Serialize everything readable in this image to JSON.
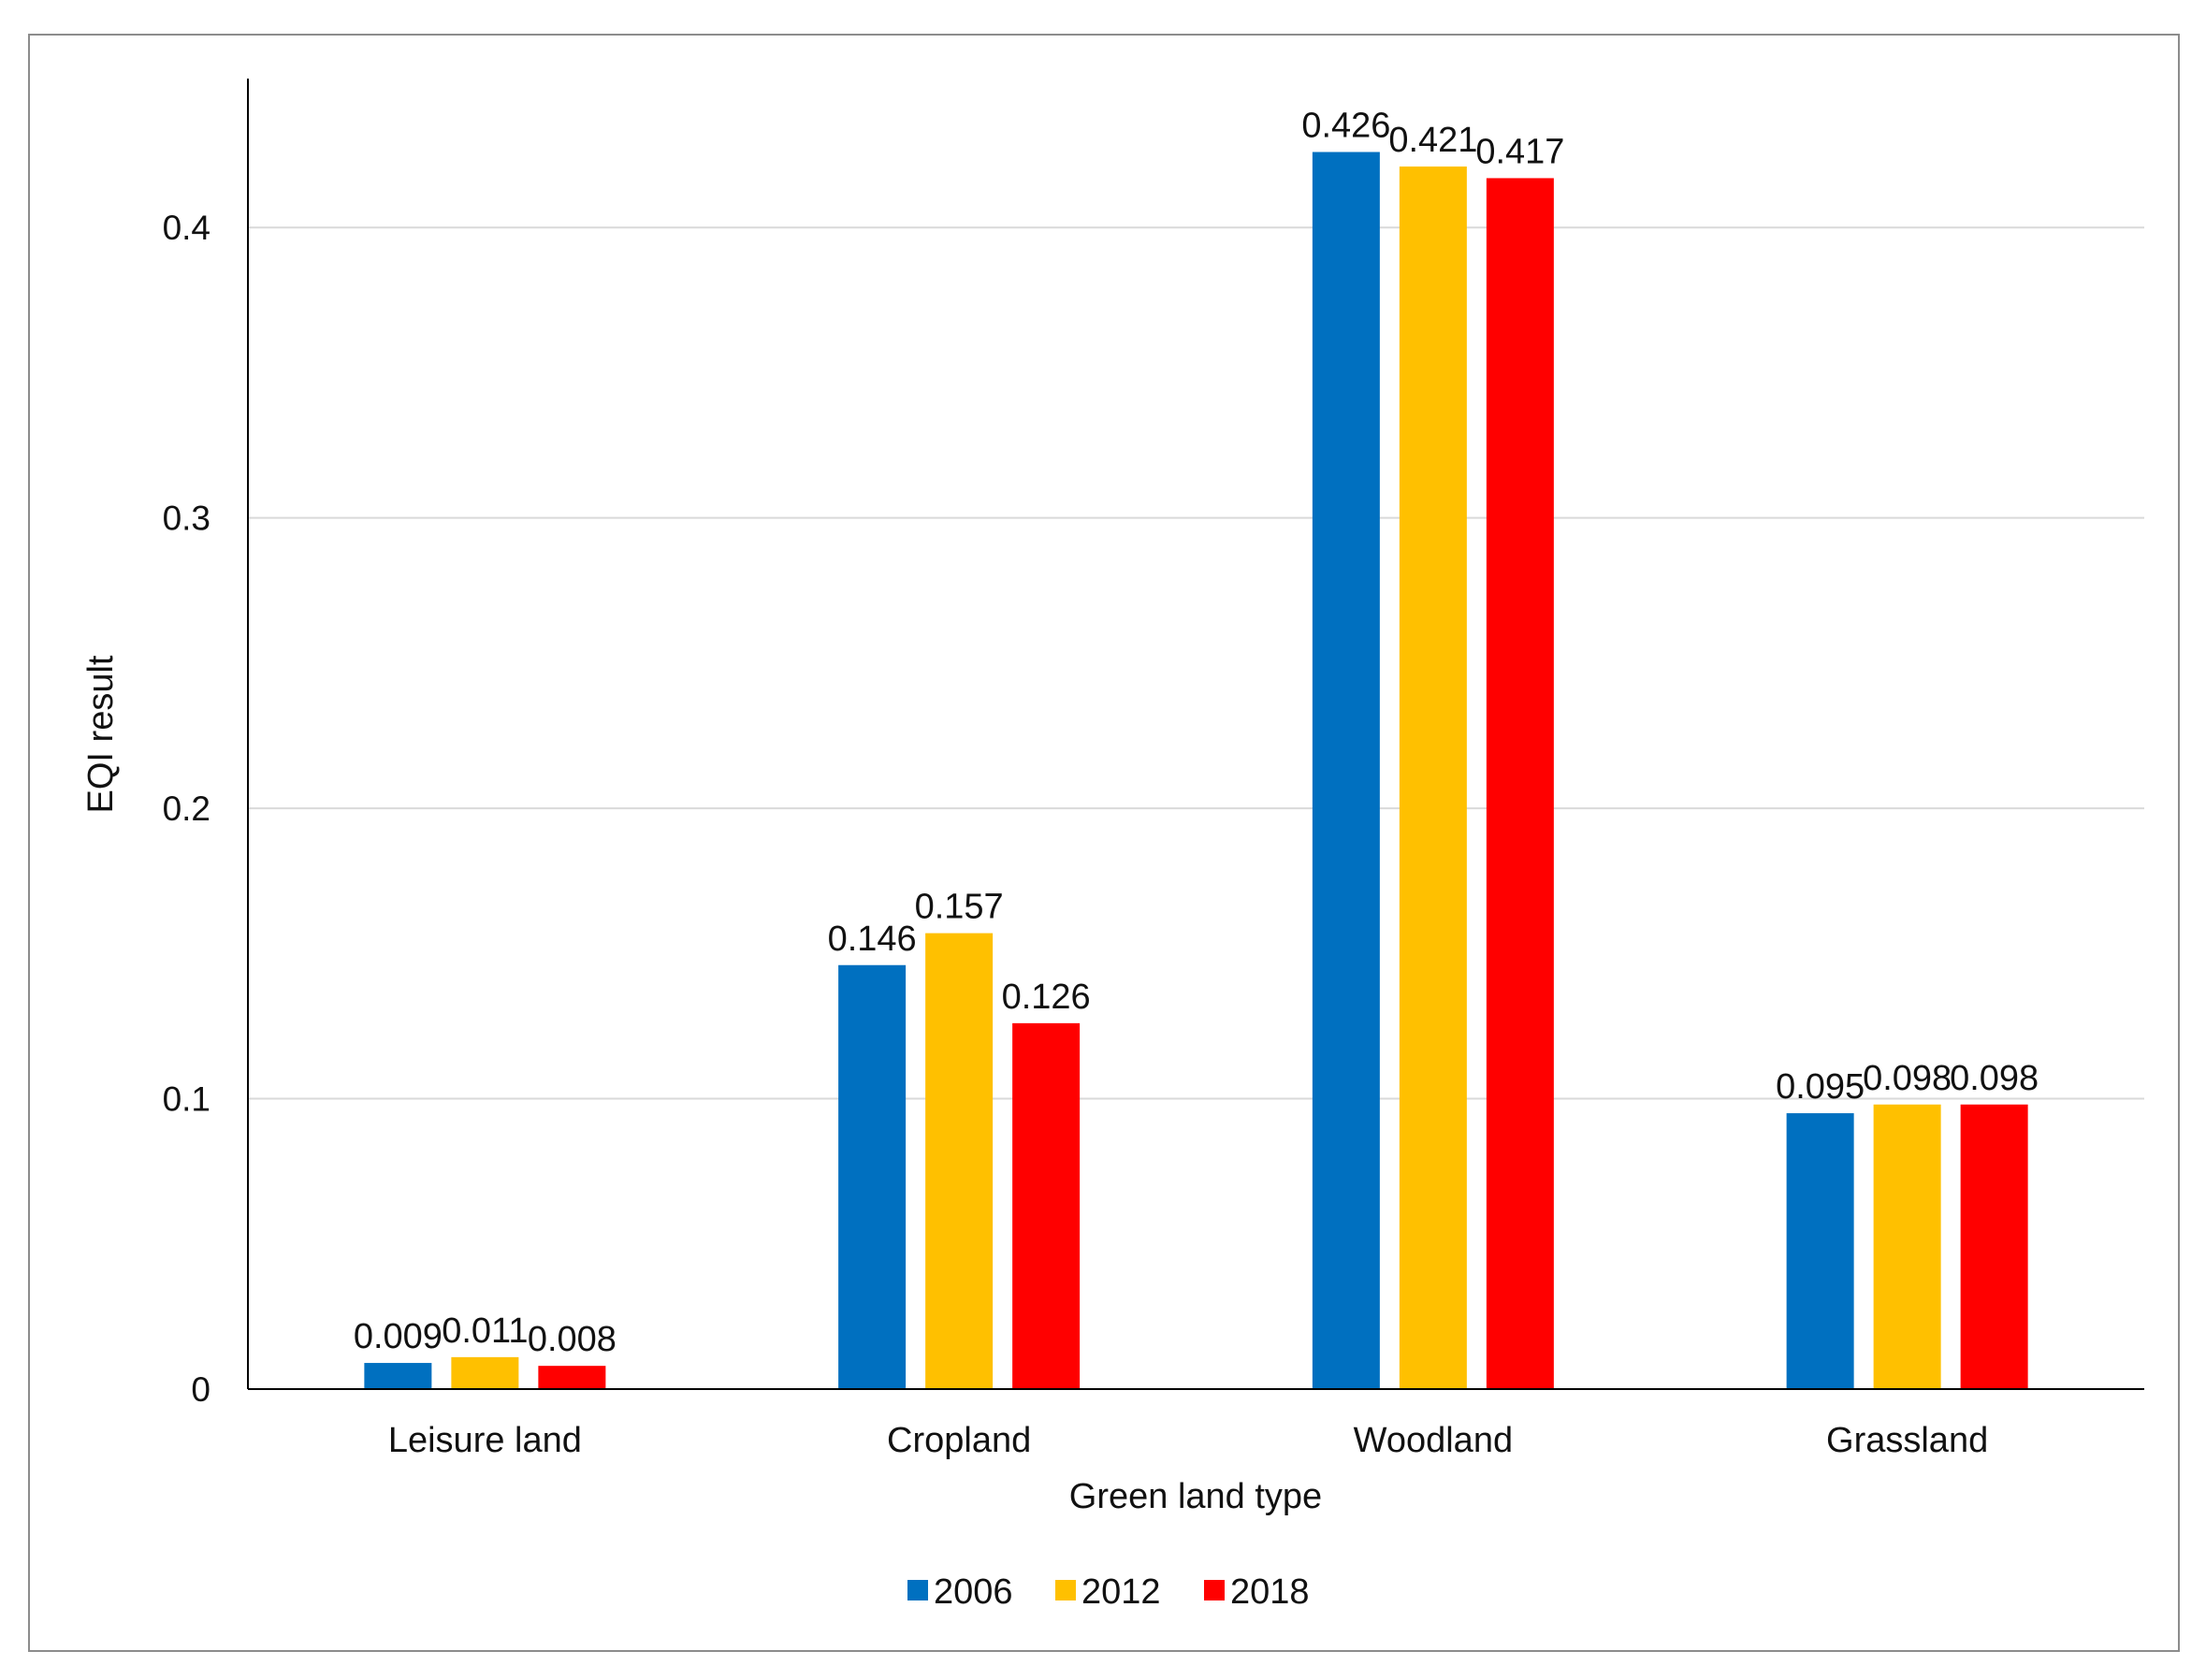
{
  "chart_data": {
    "type": "bar",
    "title": "",
    "xlabel": "Green land type",
    "ylabel": "EQI result",
    "ylim": [
      0,
      0.45
    ],
    "yticks": [
      0,
      0.1,
      0.2,
      0.3,
      0.4
    ],
    "ytick_labels": [
      "0",
      "0.1",
      "0.2",
      "0.3",
      "0.4"
    ],
    "grid": true,
    "legend_position": "bottom-center",
    "categories": [
      "Leisure land",
      "Cropland",
      "Woodland",
      "Grassland"
    ],
    "series": [
      {
        "name": "2006",
        "color": "#0070C0",
        "values": [
          0.009,
          0.146,
          0.426,
          0.095
        ],
        "labels": [
          "0.009",
          "0.146",
          "0.426",
          "0.095"
        ]
      },
      {
        "name": "2012",
        "color": "#FFC000",
        "values": [
          0.011,
          0.157,
          0.421,
          0.098
        ],
        "labels": [
          "0.011",
          "0.157",
          "0.421",
          "0.098"
        ]
      },
      {
        "name": "2018",
        "color": "#FF0000",
        "values": [
          0.008,
          0.126,
          0.417,
          0.098
        ],
        "labels": [
          "0.008",
          "0.126",
          "0.417",
          "0.098"
        ]
      }
    ]
  }
}
